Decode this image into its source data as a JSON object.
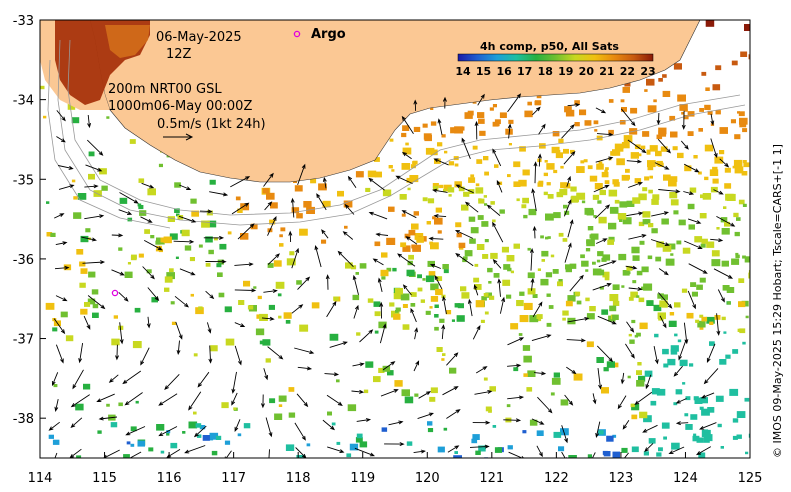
{
  "map": {
    "x_ticks": [
      "114",
      "115",
      "116",
      "117",
      "118",
      "119",
      "120",
      "121",
      "122",
      "123",
      "124",
      "125"
    ],
    "y_ticks": [
      "-33",
      "-34",
      "-35",
      "-36",
      "-37",
      "-38"
    ],
    "x_range": [
      114,
      125
    ],
    "y_range": [
      -38.5,
      -33
    ],
    "date_line1": "06-May-2025",
    "date_line2": "12Z",
    "argo_label": "Argo",
    "depth_line1": "200m  NRT00 GSL",
    "depth_line2": "1000m06-May 00:00Z",
    "scale_label": "0.5m/s (1kt 24h)",
    "colorbar_title": "4h comp, p50, All Sats",
    "colorbar_ticks": [
      "14",
      "15",
      "16",
      "17",
      "18",
      "19",
      "20",
      "21",
      "22",
      "23"
    ],
    "credit": "© IMOS 09-May-2025 15:29 Hobart; Tscale=CARS+[-1 1]",
    "colors": {
      "land": "#fbc894",
      "argo": "#e000e0",
      "sst_scale": [
        "#1a1aa8",
        "#1f5fd0",
        "#1e9fd8",
        "#1fbfa0",
        "#27b040",
        "#70c030",
        "#c8d820",
        "#f0c010",
        "#e88a10",
        "#c85a10",
        "#8a1a08"
      ]
    }
  }
}
